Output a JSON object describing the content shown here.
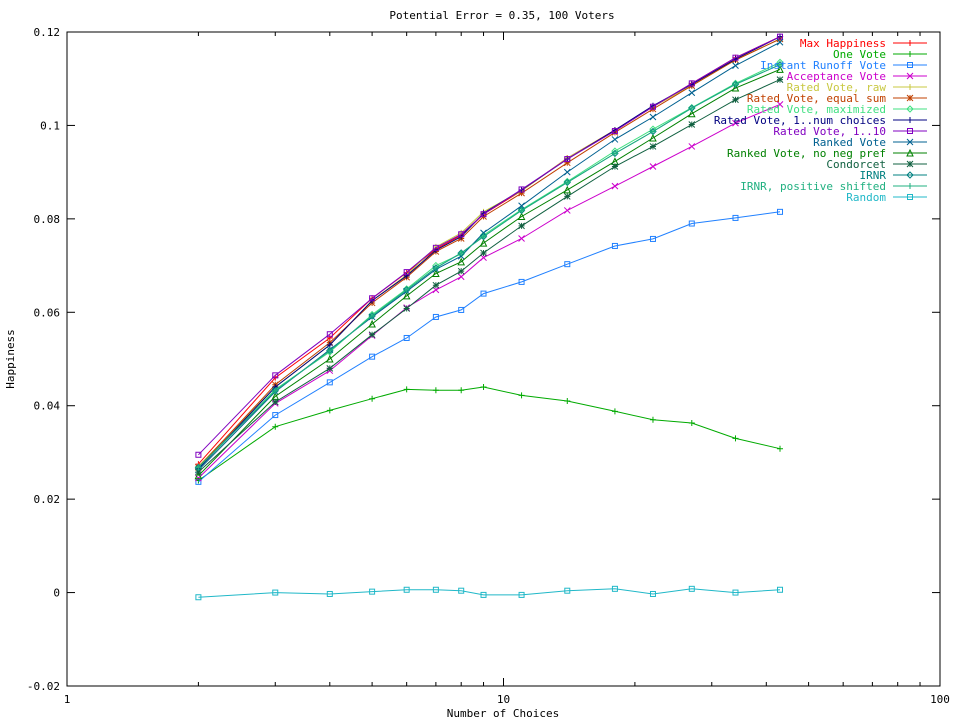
{
  "chart_data": {
    "type": "line",
    "title": "Potential Error = 0.35, 100 Voters",
    "xlabel": "Number of Choices",
    "ylabel": "Happiness",
    "xscale": "log",
    "xlim": [
      1,
      100
    ],
    "ylim": [
      -0.02,
      0.12
    ],
    "grid": false,
    "legend_position": "top-right",
    "xticks": [
      {
        "value": 1,
        "label": "1"
      },
      {
        "value": 10,
        "label": "10"
      },
      {
        "value": 100,
        "label": "100"
      }
    ],
    "yticks": [
      {
        "value": -0.02,
        "label": "-0.02"
      },
      {
        "value": 0,
        "label": "0"
      },
      {
        "value": 0.02,
        "label": "0.02"
      },
      {
        "value": 0.04,
        "label": "0.04"
      },
      {
        "value": 0.06,
        "label": "0.06"
      },
      {
        "value": 0.08,
        "label": "0.08"
      },
      {
        "value": 0.1,
        "label": "0.1"
      },
      {
        "value": 0.12,
        "label": "0.12"
      }
    ],
    "x": [
      2,
      3,
      4,
      5,
      6,
      7,
      8,
      9,
      11,
      14,
      18,
      22,
      27,
      34,
      43
    ],
    "series": [
      {
        "name": "Max Happiness",
        "color": "#ff0000",
        "marker": "plus",
        "values": [
          0.0275,
          0.046,
          0.0545,
          0.063,
          0.0685,
          0.0735,
          0.0765,
          0.081,
          0.086,
          0.093,
          0.099,
          0.104,
          0.109,
          0.1145,
          0.119
        ]
      },
      {
        "name": "One Vote",
        "color": "#00aa00",
        "marker": "plus",
        "values": [
          0.024,
          0.0355,
          0.039,
          0.0415,
          0.0435,
          0.0433,
          0.0433,
          0.044,
          0.0422,
          0.041,
          0.0388,
          0.037,
          0.0363,
          0.033,
          0.0308
        ]
      },
      {
        "name": "Instant Runoff Vote",
        "color": "#2080ff",
        "marker": "square",
        "values": [
          0.0237,
          0.038,
          0.045,
          0.0505,
          0.0545,
          0.059,
          0.0605,
          0.064,
          0.0665,
          0.0703,
          0.0742,
          0.0757,
          0.079,
          0.0802,
          0.0815
        ]
      },
      {
        "name": "Acceptance Vote",
        "color": "#cc00cc",
        "marker": "cross",
        "values": [
          0.0245,
          0.0405,
          0.0475,
          0.055,
          0.061,
          0.0648,
          0.0676,
          0.0717,
          0.0758,
          0.0818,
          0.087,
          0.0912,
          0.0955,
          0.1005,
          0.1045
        ]
      },
      {
        "name": "Rated Vote, raw",
        "color": "#c8c840",
        "marker": "plus",
        "values": [
          0.027,
          0.044,
          0.053,
          0.0625,
          0.068,
          0.074,
          0.077,
          0.0815,
          0.086,
          0.093,
          0.099,
          0.104,
          0.1085,
          0.114,
          0.1185
        ]
      },
      {
        "name": "Rated Vote, equal sum",
        "color": "#c04000",
        "marker": "star",
        "values": [
          0.0268,
          0.0445,
          0.0535,
          0.062,
          0.0675,
          0.073,
          0.0758,
          0.0805,
          0.0855,
          0.092,
          0.0985,
          0.1035,
          0.1085,
          0.114,
          0.1185
        ]
      },
      {
        "name": "Rated Vote, maximized",
        "color": "#40e080",
        "marker": "diamond",
        "values": [
          0.0265,
          0.0435,
          0.0515,
          0.0595,
          0.065,
          0.07,
          0.0725,
          0.0765,
          0.082,
          0.088,
          0.0945,
          0.0992,
          0.1038,
          0.109,
          0.1135
        ]
      },
      {
        "name": "Rated Vote, 1..num choices",
        "color": "#000080",
        "marker": "plus",
        "values": [
          0.0265,
          0.044,
          0.053,
          0.0625,
          0.0678,
          0.0733,
          0.0762,
          0.0812,
          0.0862,
          0.0928,
          0.099,
          0.1042,
          0.1088,
          0.1142,
          0.119
        ]
      },
      {
        "name": "Rated Vote, 1..10",
        "color": "#8000c0",
        "marker": "square",
        "values": [
          0.0295,
          0.0465,
          0.0553,
          0.063,
          0.0686,
          0.0738,
          0.0767,
          0.081,
          0.0863,
          0.0928,
          0.0988,
          0.104,
          0.109,
          0.1145,
          0.119
        ]
      },
      {
        "name": "Ranked Vote",
        "color": "#006090",
        "marker": "cross",
        "values": [
          0.0262,
          0.043,
          0.052,
          0.059,
          0.0645,
          0.0692,
          0.072,
          0.077,
          0.0828,
          0.09,
          0.097,
          0.1018,
          0.107,
          0.1128,
          0.1178
        ]
      },
      {
        "name": "Ranked Vote, no neg pref",
        "color": "#008000",
        "marker": "triangle",
        "values": [
          0.025,
          0.042,
          0.05,
          0.0575,
          0.0635,
          0.0683,
          0.0708,
          0.0748,
          0.0805,
          0.0862,
          0.0923,
          0.0973,
          0.1025,
          0.108,
          0.112
        ]
      },
      {
        "name": "Condorcet",
        "color": "#106040",
        "marker": "star",
        "values": [
          0.0258,
          0.0408,
          0.048,
          0.0552,
          0.0608,
          0.0658,
          0.0688,
          0.0727,
          0.0785,
          0.0848,
          0.0912,
          0.0955,
          0.1002,
          0.1055,
          0.1098
        ]
      },
      {
        "name": "IRNR",
        "color": "#008080",
        "marker": "diamond",
        "values": [
          0.0268,
          0.0432,
          0.0518,
          0.0592,
          0.0648,
          0.0695,
          0.0727,
          0.0762,
          0.0818,
          0.0878,
          0.094,
          0.0987,
          0.1037,
          0.1088,
          0.113
        ]
      },
      {
        "name": "IRNR, positive shifted",
        "color": "#20b080",
        "marker": "plus",
        "values": [
          0.0268,
          0.0432,
          0.0518,
          0.0592,
          0.0648,
          0.0695,
          0.0727,
          0.0762,
          0.0818,
          0.0878,
          0.094,
          0.0987,
          0.1037,
          0.1088,
          0.113
        ]
      },
      {
        "name": "Random",
        "color": "#20b8c8",
        "marker": "square",
        "values": [
          -0.001,
          0.0,
          -0.0003,
          0.0002,
          0.0006,
          0.0006,
          0.0004,
          -0.0005,
          -0.0005,
          0.0004,
          0.0008,
          -0.0003,
          0.0008,
          0.0,
          0.0006
        ]
      }
    ]
  }
}
